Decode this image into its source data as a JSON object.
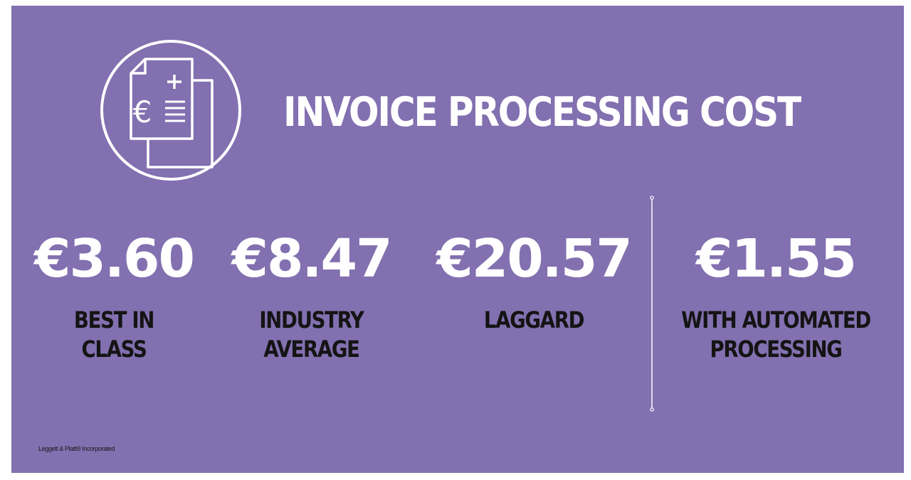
{
  "title": "INVOICE PROCESSING COST",
  "icon": "euro-invoice-document-icon",
  "stats": [
    {
      "value": "€3.60",
      "label_lines": [
        "BEST IN",
        "CLASS"
      ]
    },
    {
      "value": "€8.47",
      "label_lines": [
        "INDUSTRY",
        "AVERAGE"
      ]
    },
    {
      "value": "€20.57",
      "label_lines": [
        "LAGGARD"
      ]
    },
    {
      "value": "€1.55",
      "label_lines": [
        "WITH AUTOMATED",
        "PROCESSING"
      ]
    }
  ],
  "footer": "Leggett & Platt® Incorporated",
  "colors": {
    "background": "#8270b0",
    "value_text": "#ffffff",
    "label_text": "#141414"
  }
}
